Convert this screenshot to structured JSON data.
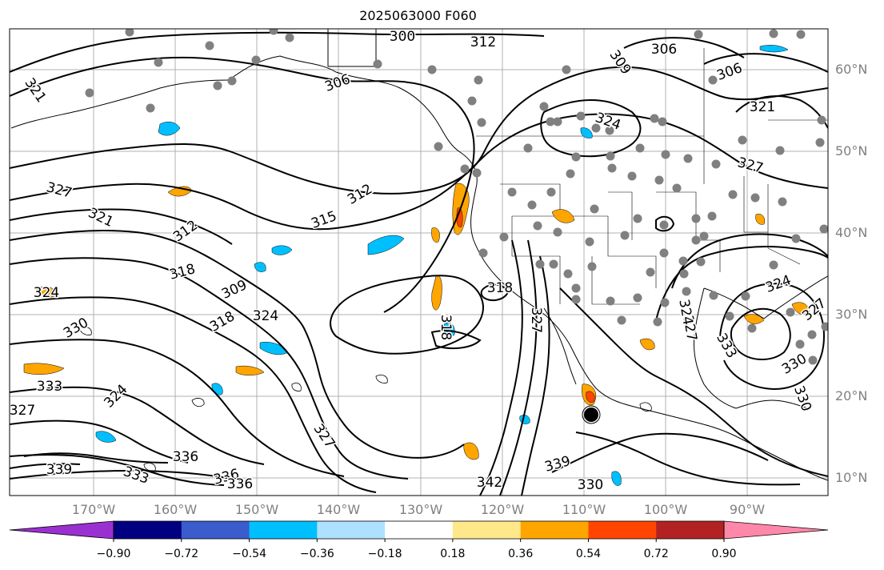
{
  "title": "2025063000 F060",
  "lat_labels": [
    "60°N",
    "50°N",
    "40°N",
    "30°N",
    "20°N",
    "10°N"
  ],
  "lon_labels": [
    "170°W",
    "160°W",
    "150°W",
    "140°W",
    "130°W",
    "120°W",
    "110°W",
    "100°W",
    "90°W"
  ],
  "contour_labels": [
    "300",
    "312",
    "309",
    "306",
    "306",
    "306",
    "321",
    "321",
    "324",
    "327",
    "321",
    "312",
    "318",
    "309",
    "312",
    "315",
    "324",
    "318",
    "318",
    "327",
    "330",
    "333",
    "327",
    "324",
    "327",
    "336",
    "333",
    "336",
    "336",
    "339",
    "342",
    "339",
    "330",
    "333",
    "324",
    "327",
    "330",
    "327",
    "318",
    "327",
    "324",
    "330",
    "324"
  ],
  "colorbar": {
    "ticks": [
      "−0.90",
      "−0.72",
      "−0.54",
      "−0.36",
      "−0.18",
      "0.18",
      "0.36",
      "0.54",
      "0.72",
      "0.90"
    ],
    "colors": [
      "#9b30d0",
      "#000080",
      "#3a5ccc",
      "#00bfff",
      "#aee1ff",
      "#ffffff",
      "#ffe88a",
      "#ffa500",
      "#ff4500",
      "#b22222",
      "#ff88aa"
    ]
  },
  "colors": {
    "contour": "#000000",
    "grid": "#b0b0b0",
    "coast": "#000000",
    "station": "#808080",
    "positive_fill": "#ffa500",
    "negative_fill": "#00bfff"
  }
}
